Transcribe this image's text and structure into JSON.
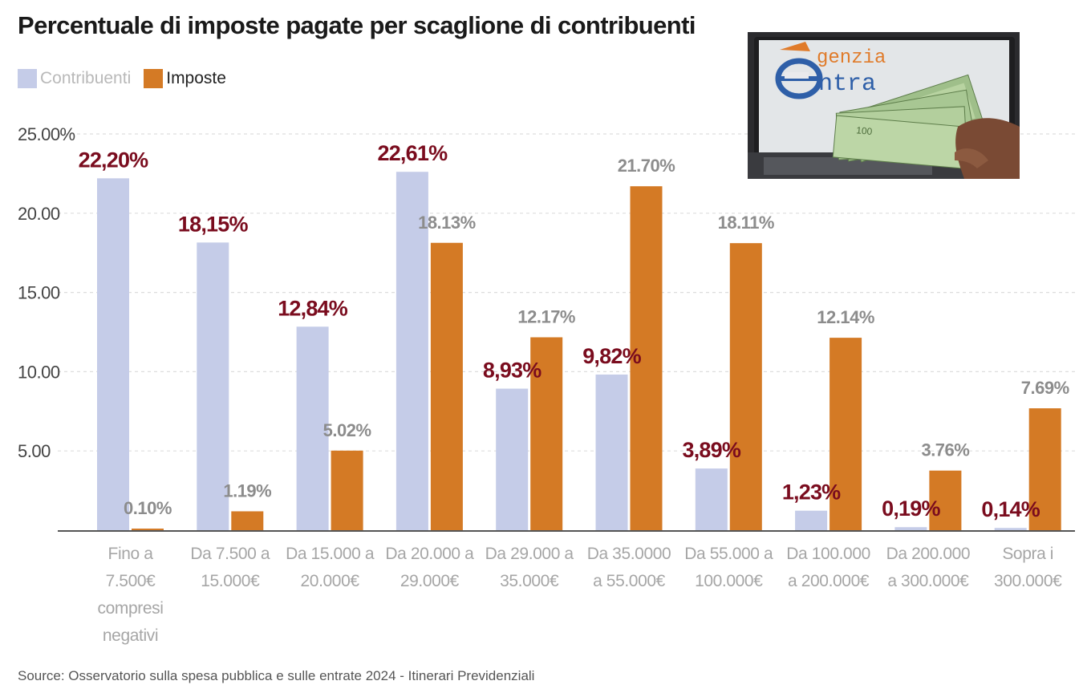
{
  "header": {
    "title": "Percentuale di imposte pagate per scaglione di contribuenti"
  },
  "legend": [
    {
      "label": "Contribuenti",
      "color": "#c5cce8"
    },
    {
      "label": "Imposte",
      "color": "#d47a25"
    }
  ],
  "photo": {
    "sign_text_1": "genzia",
    "sign_text_2": "ntra",
    "banknote_text": "100",
    "icon": "tax-agency-banknotes-image"
  },
  "colors": {
    "contribuenti": "#c5cce8",
    "imposte": "#d47a25",
    "contribuenti_label": "#7a0c1e",
    "imposte_label": "#8c8c8c",
    "axis_text": "#444444",
    "category_text": "#a6a6a6",
    "grid": "#dddddd"
  },
  "chart_data": {
    "type": "bar",
    "title": "Percentuale di imposte pagate per scaglione di contribuenti",
    "xlabel": "",
    "ylabel": "",
    "ylim": [
      0,
      25
    ],
    "y_ticks": [
      "5.00",
      "10.00",
      "15.00",
      "20.00",
      "25.00%"
    ],
    "y_tick_values": [
      5,
      10,
      15,
      20,
      25
    ],
    "grid": true,
    "legend_position": "top-left",
    "categories": [
      [
        "Fino a",
        "7.500€",
        "compresi",
        "negativi"
      ],
      [
        "Da 7.500 a",
        "15.000€"
      ],
      [
        "Da 15.000 a",
        "20.000€"
      ],
      [
        "Da 20.000 a",
        "29.000€"
      ],
      [
        "Da 29.000 a",
        "35.000€"
      ],
      [
        "Da 35.0000",
        "a 55.000€"
      ],
      [
        "Da 55.000 a",
        "100.000€"
      ],
      [
        "Da 100.000",
        "a 200.000€"
      ],
      [
        "Da 200.000",
        "a 300.000€"
      ],
      [
        "Sopra i",
        "300.000€"
      ]
    ],
    "series": [
      {
        "name": "Contribuenti",
        "values": [
          22.2,
          18.15,
          12.84,
          22.61,
          8.93,
          9.82,
          3.89,
          1.23,
          0.19,
          0.14
        ],
        "labels": [
          "22,20%",
          "18,15%",
          "12,84%",
          "22,61%",
          "8,93%",
          "9,82%",
          "3,89%",
          "1,23%",
          "0,19%",
          "0,14%"
        ]
      },
      {
        "name": "Imposte",
        "values": [
          0.1,
          1.19,
          5.02,
          18.13,
          12.17,
          21.7,
          18.11,
          12.14,
          3.76,
          7.69
        ],
        "labels": [
          "0.10%",
          "1.19%",
          "5.02%",
          "18.13%",
          "12.17%",
          "21.70%",
          "18.11%",
          "12.14%",
          "3.76%",
          "7.69%"
        ]
      }
    ]
  },
  "footer": {
    "source": "Source: Osservatorio sulla spesa pubblica e sulle entrate 2024 - Itinerari Previdenziali"
  }
}
